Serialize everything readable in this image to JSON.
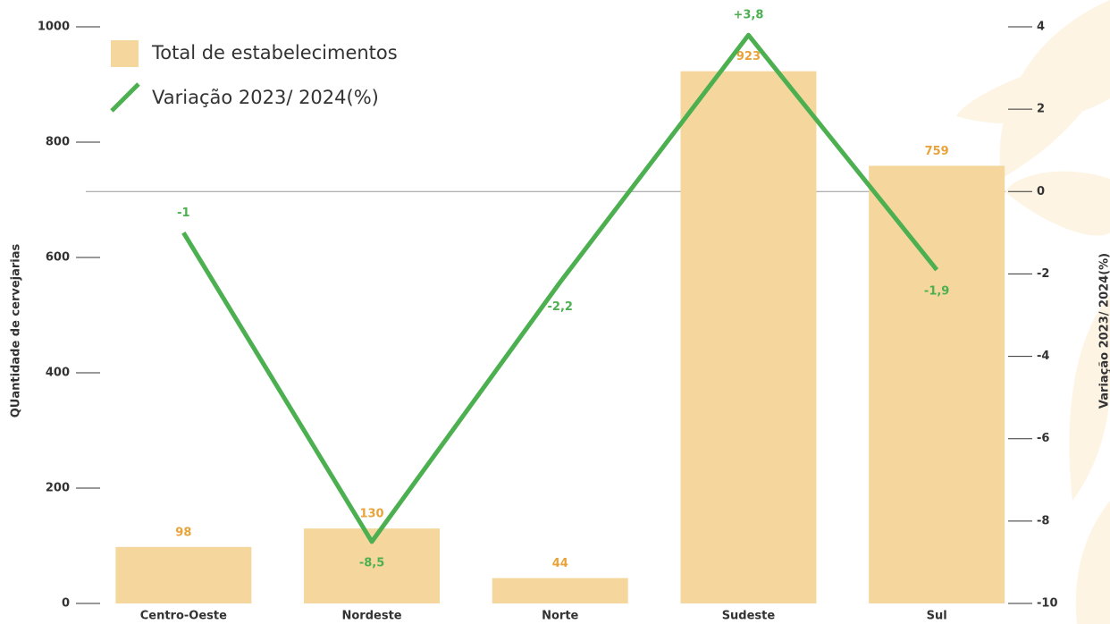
{
  "chart_data": {
    "type": "combo",
    "categories": [
      "Centro-Oeste",
      "Nordeste",
      "Norte",
      "Sudeste",
      "Sul"
    ],
    "series": [
      {
        "name": "Total de estabelecimentos",
        "type": "bar",
        "color": "#f5d79e",
        "label_color": "#e8a33a",
        "values": [
          98,
          130,
          44,
          923,
          759
        ]
      },
      {
        "name": "Variação 2023/ 2024(%)",
        "type": "line",
        "axis": "y2",
        "color": "#4cb050",
        "label_color": "#4cb050",
        "values": [
          -1,
          -8.5,
          -2.2,
          3.8,
          -1.9
        ],
        "value_labels": [
          "-1",
          "-8,5",
          "-2,2",
          "+3,8",
          "-1,9"
        ]
      }
    ],
    "ylabel": "QUantidade de cervejarias",
    "y2label": "Variação 2023/ 2024(%)",
    "ylim": [
      0,
      1000
    ],
    "yticks": [
      0,
      200,
      400,
      600,
      800,
      1000
    ],
    "y2lim": [
      -10,
      4
    ],
    "y2ticks": [
      -10,
      -8,
      -6,
      -4,
      -2,
      0,
      2,
      4
    ],
    "legend": "top-left"
  }
}
